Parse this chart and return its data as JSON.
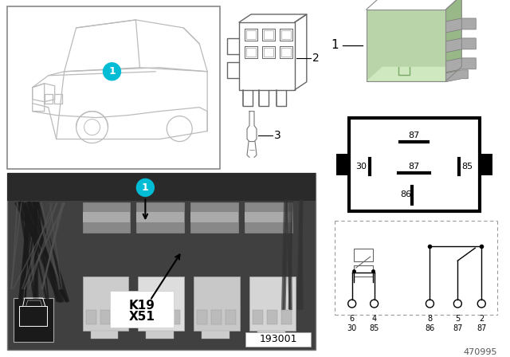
{
  "bg_color": "#ffffff",
  "diagram_number": "470995",
  "photo_label": "193001",
  "relay_green": "#b8d4a8",
  "relay_green_dark": "#98b888",
  "relay_green_light": "#d0e8c0",
  "photo_bg": "#3a3a3a",
  "photo_bg2": "#555555",
  "photo_wire_color": "#222222",
  "connector_color": "#cccccc",
  "car_box_border": "#888888",
  "label_color": "#000000",
  "pin_diagram_border": "#000000",
  "schematic_border": "#999999",
  "cyan_color": "#00bcd4",
  "parts": {
    "relay_label": "1",
    "connector_label": "2",
    "terminal_label": "3"
  },
  "pin_diagram_labels": {
    "top_center": "87",
    "mid_left_label": "30",
    "mid_center_label": "87",
    "mid_right_label": "85",
    "bot_center_label": "86"
  },
  "schematic_pin_numbers": [
    "6",
    "4",
    "8",
    "5",
    "2"
  ],
  "schematic_pin_names_top": [
    "30",
    "85",
    "86",
    "87",
    "87"
  ]
}
